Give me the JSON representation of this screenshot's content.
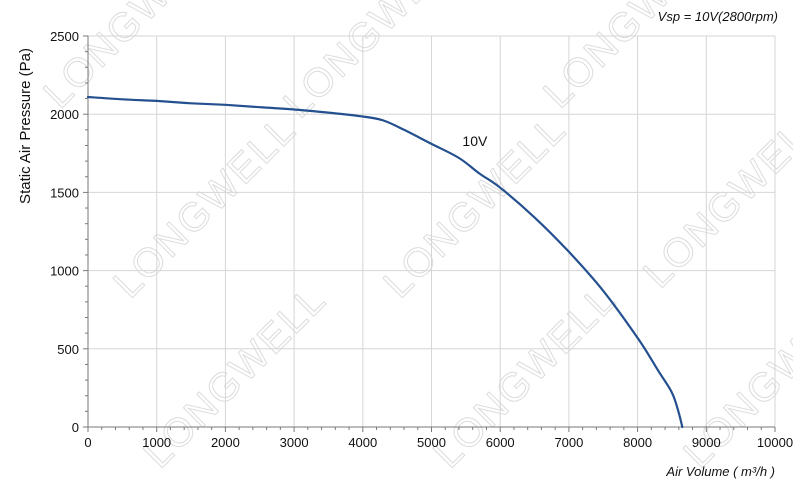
{
  "watermark": "LONGWELL",
  "chart_data": {
    "type": "line",
    "annotation": "Vsp = 10V(2800rpm)",
    "xlabel": "Air Volume ( m³/h )",
    "ylabel": "Static Air Pressure  (Pa)",
    "xlim": [
      0,
      10000
    ],
    "ylim": [
      0,
      2500
    ],
    "xticks": [
      "0",
      "1000",
      "2000",
      "3000",
      "4000",
      "5000",
      "6000",
      "7000",
      "8000",
      "9000",
      "10000"
    ],
    "yticks": [
      "0",
      "500",
      "1000",
      "1500",
      "2000",
      "2500"
    ],
    "grid": true,
    "colors": {
      "series": "#24508f",
      "grid": "#d6d6d6",
      "axis": "#7a7a7a"
    },
    "series": [
      {
        "name": "10V",
        "x": [
          0,
          500,
          1000,
          1500,
          2000,
          2500,
          3000,
          3500,
          4000,
          4300,
          4600,
          5000,
          5400,
          5700,
          6000,
          6500,
          7000,
          7500,
          8000,
          8300,
          8500,
          8600,
          8650
        ],
        "y": [
          2110,
          2095,
          2085,
          2070,
          2060,
          2045,
          2030,
          2010,
          1985,
          1960,
          1900,
          1810,
          1720,
          1620,
          1530,
          1340,
          1120,
          870,
          570,
          360,
          220,
          90,
          0
        ]
      }
    ]
  }
}
